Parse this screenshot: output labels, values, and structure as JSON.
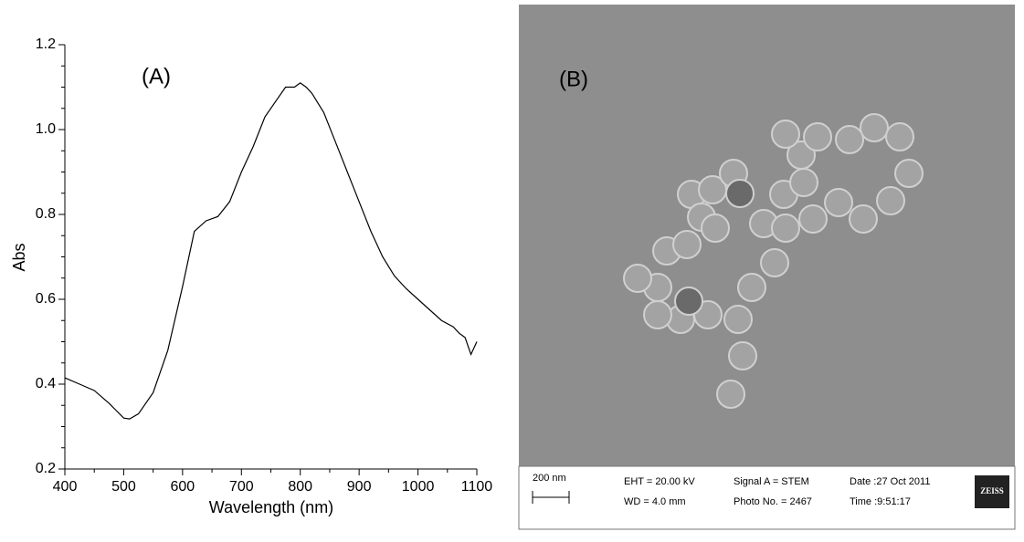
{
  "chart_data": {
    "type": "line",
    "annotation": "(A)",
    "x_label": "Wavelength (nm)",
    "y_label": "Abs",
    "color": "#000000",
    "x": [
      400,
      425,
      450,
      475,
      500,
      510,
      525,
      550,
      575,
      600,
      620,
      640,
      660,
      680,
      700,
      720,
      740,
      760,
      775,
      790,
      800,
      810,
      820,
      840,
      860,
      880,
      900,
      920,
      940,
      960,
      980,
      1000,
      1020,
      1040,
      1060,
      1070,
      1080,
      1090,
      1100
    ],
    "values": [
      0.415,
      0.4,
      0.385,
      0.355,
      0.32,
      0.318,
      0.33,
      0.38,
      0.48,
      0.63,
      0.76,
      0.785,
      0.795,
      0.83,
      0.9,
      0.96,
      1.03,
      1.07,
      1.1,
      1.1,
      1.11,
      1.1,
      1.085,
      1.04,
      0.97,
      0.9,
      0.83,
      0.76,
      0.7,
      0.655,
      0.625,
      0.6,
      0.575,
      0.55,
      0.535,
      0.52,
      0.51,
      0.47,
      0.5
    ],
    "xlim": [
      400,
      1100
    ],
    "ylim": [
      0.2,
      1.2
    ],
    "xticks": [
      400,
      500,
      600,
      700,
      800,
      900,
      1000,
      1100
    ],
    "yticks": [
      0.2,
      0.4,
      0.6,
      0.8,
      {
        "value": 1,
        "label": "1.0"
      },
      1.2
    ]
  },
  "micrograph": {
    "annotation": "(B)",
    "scale_bar": "200 nm",
    "eht": "EHT = 20.00 kV",
    "wd": "WD = 4.0 mm",
    "signal": "Signal A = STEM",
    "photo": "Photo No. = 2467",
    "date": "Date :27 Oct 2011",
    "time": "Time :9:51:17",
    "logo": "ZEISS"
  }
}
